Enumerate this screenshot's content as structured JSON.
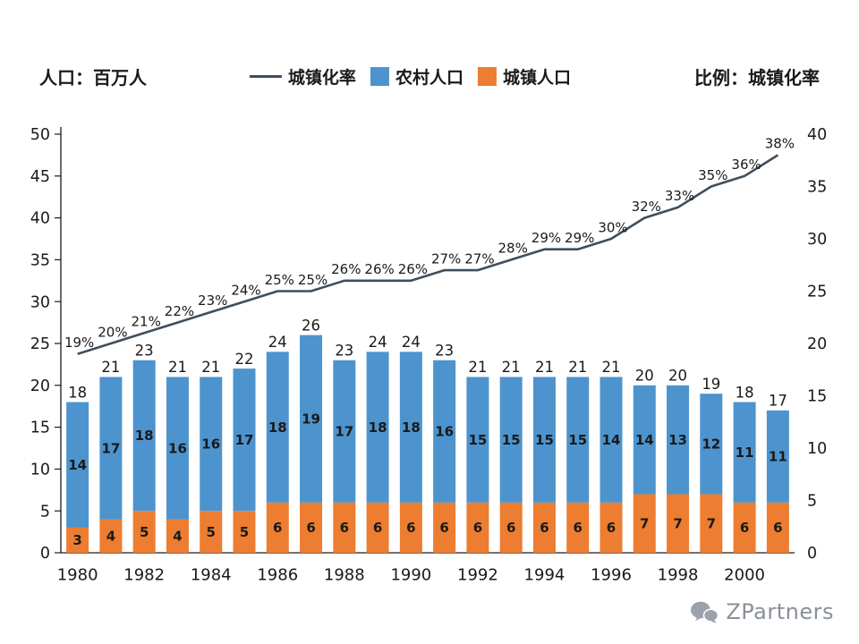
{
  "header": {
    "left_title": "人口：百万人",
    "right_title": "比例：城镇化率",
    "legend": {
      "items": [
        {
          "label": "城镇化率",
          "swatch": "line",
          "color": "#3F4E5D"
        },
        {
          "label": "农村人口",
          "swatch": "square",
          "color": "#4D94CE"
        },
        {
          "label": "城镇人口",
          "swatch": "square",
          "color": "#ED7D31"
        }
      ]
    }
  },
  "chart_data": {
    "type": "bar",
    "subtype": "stacked-bar-with-line",
    "title": "",
    "categories": [
      1980,
      1981,
      1982,
      1983,
      1984,
      1985,
      1986,
      1987,
      1988,
      1989,
      1990,
      1991,
      1992,
      1993,
      1994,
      1995,
      1996,
      1997,
      1998,
      1999,
      2000,
      2001
    ],
    "x_tick_labels": [
      "1980",
      "1982",
      "1984",
      "1986",
      "1988",
      "1990",
      "1992",
      "1994",
      "1996",
      "1998",
      "2000"
    ],
    "x_tick_indices": [
      0,
      2,
      4,
      6,
      8,
      10,
      12,
      14,
      16,
      18,
      20
    ],
    "series": [
      {
        "name": "城镇人口",
        "type": "bar",
        "axis": "left",
        "color": "#ED7D31",
        "label_color": "#843C0C",
        "values": [
          3,
          4,
          5,
          4,
          5,
          5,
          6,
          6,
          6,
          6,
          6,
          6,
          6,
          6,
          6,
          6,
          6,
          7,
          7,
          7,
          6,
          6
        ]
      },
      {
        "name": "农村人口",
        "type": "bar",
        "axis": "left",
        "color": "#4D94CE",
        "label_color": "#FFFFFF",
        "values": [
          14,
          17,
          18,
          16,
          16,
          17,
          18,
          19,
          17,
          18,
          18,
          16,
          15,
          15,
          15,
          15,
          14,
          14,
          13,
          12,
          11,
          11
        ]
      },
      {
        "name": "城镇化率",
        "type": "line",
        "axis": "right",
        "color": "#3F4E5D",
        "label_suffix": "%",
        "values": [
          19,
          20,
          21,
          22,
          23,
          24,
          25,
          25,
          26,
          26,
          26,
          27,
          27,
          28,
          29,
          29,
          30,
          32,
          33,
          35,
          36,
          38
        ]
      }
    ],
    "bar_totals": [
      18,
      21,
      23,
      21,
      21,
      22,
      24,
      26,
      23,
      24,
      24,
      23,
      21,
      21,
      21,
      21,
      21,
      20,
      20,
      19,
      18,
      17
    ],
    "left_axis": {
      "title": "人口：百万人",
      "min": 0,
      "max": 50,
      "step": 5
    },
    "right_axis": {
      "title": "比例：城镇化率",
      "min": 0,
      "max": 40,
      "step": 5
    },
    "legend_position": "top",
    "grid": false
  },
  "footer": {
    "brand": "ZPartners"
  }
}
